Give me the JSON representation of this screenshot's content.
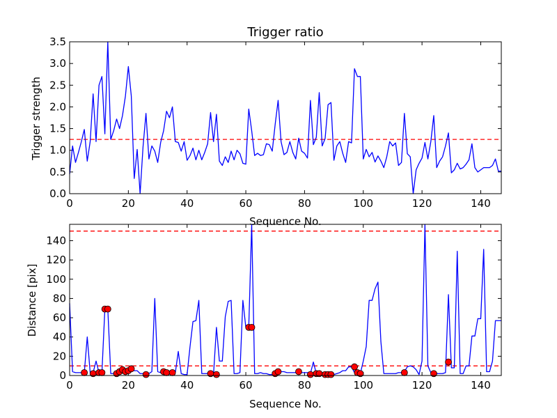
{
  "chart_data": [
    {
      "type": "line",
      "title": "Trigger ratio",
      "xlabel": "Sequence No.",
      "ylabel": "Trigger strength",
      "xlim": [
        0,
        147
      ],
      "ylim": [
        0,
        3.5
      ],
      "xticks": [
        0,
        20,
        40,
        60,
        80,
        100,
        120,
        140
      ],
      "yticks": [
        0.0,
        0.5,
        1.0,
        1.5,
        2.0,
        2.5,
        3.0,
        3.5
      ],
      "xtick_labels": [
        "0",
        "20",
        "40",
        "60",
        "80",
        "100",
        "120",
        "140"
      ],
      "ytick_labels": [
        "0.0",
        "0.5",
        "1.0",
        "1.5",
        "2.0",
        "2.5",
        "3.0",
        "3.5"
      ],
      "series": [
        {
          "color": "#0000ff",
          "x": [
            0,
            1,
            2,
            3,
            4,
            5,
            6,
            7,
            8,
            9,
            10,
            11,
            12,
            13,
            14,
            15,
            16,
            17,
            18,
            19,
            20,
            21,
            22,
            23,
            24,
            25,
            26,
            27,
            28,
            29,
            30,
            31,
            32,
            33,
            34,
            35,
            36,
            37,
            38,
            39,
            40,
            41,
            42,
            43,
            44,
            45,
            46,
            47,
            48,
            49,
            50,
            51,
            52,
            53,
            54,
            55,
            56,
            57,
            58,
            59,
            60,
            61,
            62,
            63,
            64,
            65,
            66,
            67,
            68,
            69,
            70,
            71,
            72,
            73,
            74,
            75,
            76,
            77,
            78,
            79,
            80,
            81,
            82,
            83,
            84,
            85,
            86,
            87,
            88,
            89,
            90,
            91,
            92,
            93,
            94,
            95,
            96,
            97,
            98,
            99,
            100,
            101,
            102,
            103,
            104,
            105,
            106,
            107,
            108,
            109,
            110,
            111,
            112,
            113,
            114,
            115,
            116,
            117,
            118,
            119,
            120,
            121,
            122,
            123,
            124,
            125,
            126,
            127,
            128,
            129,
            130,
            131,
            132,
            133,
            134,
            135,
            136,
            137,
            138,
            139,
            140,
            141,
            142,
            143,
            144,
            145,
            146,
            147
          ],
          "y": [
            0.45,
            1.1,
            0.72,
            0.95,
            1.2,
            1.48,
            0.75,
            1.2,
            2.3,
            1.2,
            2.5,
            2.7,
            1.38,
            3.5,
            1.25,
            1.45,
            1.72,
            1.5,
            1.8,
            2.25,
            2.93,
            2.25,
            0.35,
            1.02,
            0.0,
            1.08,
            1.85,
            0.8,
            1.1,
            0.98,
            0.72,
            1.18,
            1.45,
            1.9,
            1.75,
            2.0,
            1.2,
            1.18,
            0.98,
            1.2,
            0.77,
            0.88,
            1.05,
            0.78,
            1.0,
            0.78,
            0.95,
            1.15,
            1.87,
            1.2,
            1.83,
            0.75,
            0.65,
            0.85,
            0.72,
            0.98,
            0.78,
            1.0,
            0.92,
            0.7,
            0.68,
            1.95,
            1.45,
            0.88,
            0.93,
            0.88,
            0.9,
            1.15,
            1.13,
            0.98,
            1.6,
            2.15,
            1.2,
            0.9,
            0.95,
            1.2,
            0.95,
            0.8,
            1.28,
            0.98,
            0.93,
            0.82,
            2.15,
            1.13,
            1.3,
            2.33,
            1.1,
            1.27,
            2.05,
            2.1,
            0.77,
            1.1,
            1.2,
            0.93,
            0.72,
            1.2,
            1.17,
            2.88,
            2.7,
            2.7,
            0.8,
            1.02,
            0.85,
            0.95,
            0.73,
            0.87,
            0.75,
            0.6,
            0.85,
            1.2,
            1.1,
            1.17,
            0.65,
            0.72,
            1.85,
            0.92,
            0.85,
            0.0,
            0.55,
            0.7,
            0.82,
            1.18,
            0.8,
            1.2,
            1.8,
            0.6,
            0.75,
            0.85,
            1.1,
            1.4,
            0.48,
            0.55,
            0.7,
            0.57,
            0.6,
            0.68,
            0.78,
            1.15,
            0.6,
            0.5,
            0.55,
            0.6,
            0.6,
            0.6,
            0.65,
            0.8,
            0.52,
            0.52
          ]
        }
      ],
      "hlines": [
        {
          "y": 1.25,
          "color": "#ff0000",
          "style": "dashed"
        }
      ]
    },
    {
      "type": "line",
      "title": "",
      "xlabel": "Sequence No.",
      "ylabel": "Distance [pix]",
      "xlim": [
        0,
        147
      ],
      "ylim": [
        0,
        157
      ],
      "xticks": [
        0,
        20,
        40,
        60,
        80,
        100,
        120,
        140
      ],
      "yticks": [
        0,
        20,
        40,
        60,
        80,
        100,
        120,
        140
      ],
      "xtick_labels": [
        "0",
        "20",
        "40",
        "60",
        "80",
        "100",
        "120",
        "140"
      ],
      "ytick_labels": [
        "0",
        "20",
        "40",
        "60",
        "80",
        "100",
        "120",
        "140"
      ],
      "series": [
        {
          "color": "#0000ff",
          "x": [
            0,
            1,
            2,
            3,
            4,
            5,
            6,
            7,
            8,
            9,
            10,
            11,
            12,
            13,
            14,
            15,
            16,
            17,
            18,
            19,
            20,
            21,
            22,
            23,
            24,
            25,
            26,
            27,
            28,
            29,
            30,
            31,
            32,
            33,
            34,
            35,
            36,
            37,
            38,
            39,
            40,
            41,
            42,
            43,
            44,
            45,
            46,
            47,
            48,
            49,
            50,
            51,
            52,
            53,
            54,
            55,
            56,
            57,
            58,
            59,
            60,
            61,
            62,
            63,
            64,
            65,
            66,
            67,
            68,
            69,
            70,
            71,
            72,
            73,
            74,
            75,
            76,
            77,
            78,
            79,
            80,
            81,
            82,
            83,
            84,
            85,
            86,
            87,
            88,
            89,
            90,
            91,
            92,
            93,
            94,
            95,
            96,
            97,
            98,
            99,
            100,
            101,
            102,
            103,
            104,
            105,
            106,
            107,
            108,
            109,
            110,
            111,
            112,
            113,
            114,
            115,
            116,
            117,
            118,
            119,
            120,
            121,
            122,
            123,
            124,
            125,
            126,
            127,
            128,
            129,
            130,
            131,
            132,
            133,
            134,
            135,
            136,
            137,
            138,
            139,
            140,
            141,
            142,
            143,
            144,
            145,
            146,
            147
          ],
          "y": [
            75,
            4,
            3,
            3,
            3,
            3,
            40,
            3,
            3,
            15,
            3,
            3,
            69,
            69,
            2,
            2,
            3,
            5,
            6,
            4,
            5,
            7,
            5,
            5,
            2,
            2,
            2,
            2,
            4,
            80,
            4,
            3,
            3,
            3,
            3,
            4,
            3,
            25,
            2,
            1,
            1,
            30,
            56,
            57,
            78,
            2,
            2,
            2,
            2,
            1,
            50,
            15,
            15,
            61,
            77,
            78,
            2,
            2,
            3,
            78,
            50,
            50,
            157,
            2,
            2,
            3,
            2,
            2,
            1,
            1,
            3,
            4,
            4,
            4,
            3,
            3,
            3,
            3,
            4,
            3,
            3,
            3,
            2,
            14,
            2,
            2,
            1,
            1,
            1,
            1,
            1,
            2,
            3,
            5,
            5,
            9,
            9,
            3,
            3,
            2,
            15,
            30,
            78,
            78,
            90,
            97,
            35,
            2,
            2,
            2,
            2,
            2,
            3,
            3,
            4,
            9,
            10,
            9,
            6,
            1,
            15,
            157,
            10,
            3,
            2,
            2,
            2,
            2,
            3,
            84,
            8,
            8,
            129,
            2,
            2,
            10,
            10,
            41,
            41,
            59,
            59,
            131,
            4,
            4,
            15,
            57,
            57,
            57
          ]
        }
      ],
      "markers": {
        "color": "#ff0000",
        "x": [
          5,
          8,
          10,
          11,
          12,
          13,
          16,
          17,
          18,
          19,
          20,
          21,
          26,
          32,
          33,
          35,
          48,
          50,
          61,
          62,
          70,
          71,
          78,
          82,
          84,
          85,
          87,
          88,
          89,
          97,
          98,
          99,
          114,
          124,
          129
        ],
        "y": [
          3,
          2,
          3,
          3,
          69,
          69,
          2,
          4,
          6,
          4,
          5,
          7,
          1,
          4,
          3,
          3,
          2,
          1,
          50,
          50,
          2,
          4,
          4,
          1,
          2,
          2,
          1,
          1,
          1,
          9,
          3,
          2,
          3,
          2,
          14
        ]
      },
      "hlines": [
        {
          "y": 150,
          "color": "#ff0000",
          "style": "dashed"
        },
        {
          "y": 10,
          "color": "#ff0000",
          "style": "dashed"
        }
      ]
    }
  ]
}
